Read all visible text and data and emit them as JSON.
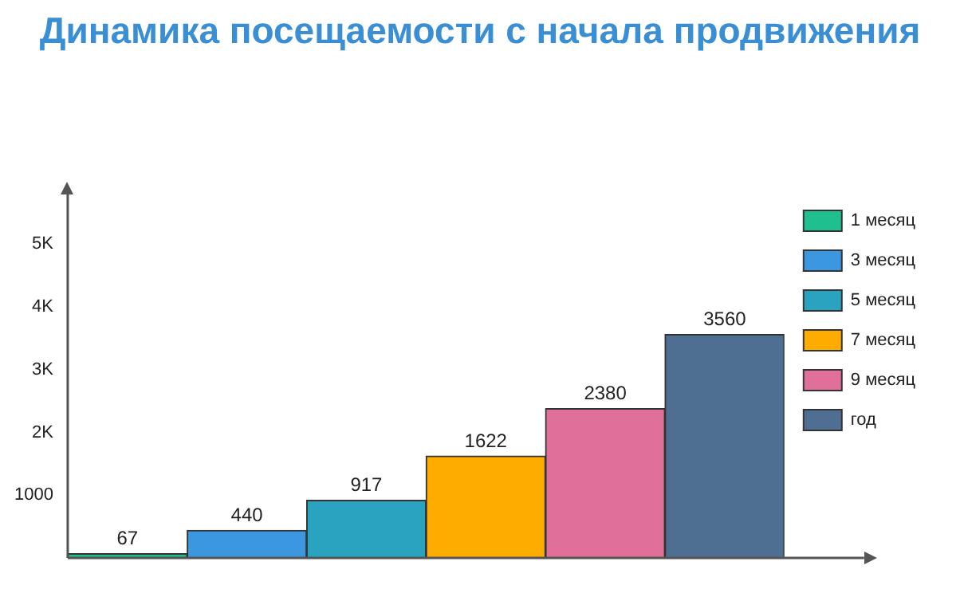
{
  "chart_data": {
    "type": "bar",
    "title": "Динамика посещаемости с начала продвижения",
    "categories": [
      null,
      null,
      null,
      null,
      null,
      null
    ],
    "series": [
      {
        "name": "1 месяц",
        "color": "#1fbf8f",
        "values": [
          67,
          null,
          null,
          null,
          null,
          null
        ]
      },
      {
        "name": "3 месяц",
        "color": "#3b97e0",
        "values": [
          null,
          440,
          null,
          null,
          null,
          null
        ]
      },
      {
        "name": "5 месяц",
        "color": "#29a3bf",
        "values": [
          null,
          null,
          917,
          null,
          null,
          null
        ]
      },
      {
        "name": "7 месяц",
        "color": "#ffac00",
        "values": [
          null,
          null,
          null,
          1622,
          null,
          null
        ]
      },
      {
        "name": "9 месяц",
        "color": "#e0709a",
        "values": [
          null,
          null,
          null,
          null,
          2380,
          null
        ]
      },
      {
        "name": "год",
        "color": "#4e6e92",
        "values": [
          null,
          null,
          null,
          null,
          null,
          3560
        ]
      }
    ],
    "ylim": [
      0,
      5800
    ],
    "yticks": [
      {
        "value": 1000,
        "label": "1000"
      },
      {
        "value": 2000,
        "label": "2K"
      },
      {
        "value": 3000,
        "label": "3K"
      },
      {
        "value": 4000,
        "label": "4K"
      },
      {
        "value": 5000,
        "label": "5K"
      }
    ],
    "stacked": true,
    "tick_labels": "y",
    "data_labels": true,
    "grid": false,
    "legend": "right"
  }
}
